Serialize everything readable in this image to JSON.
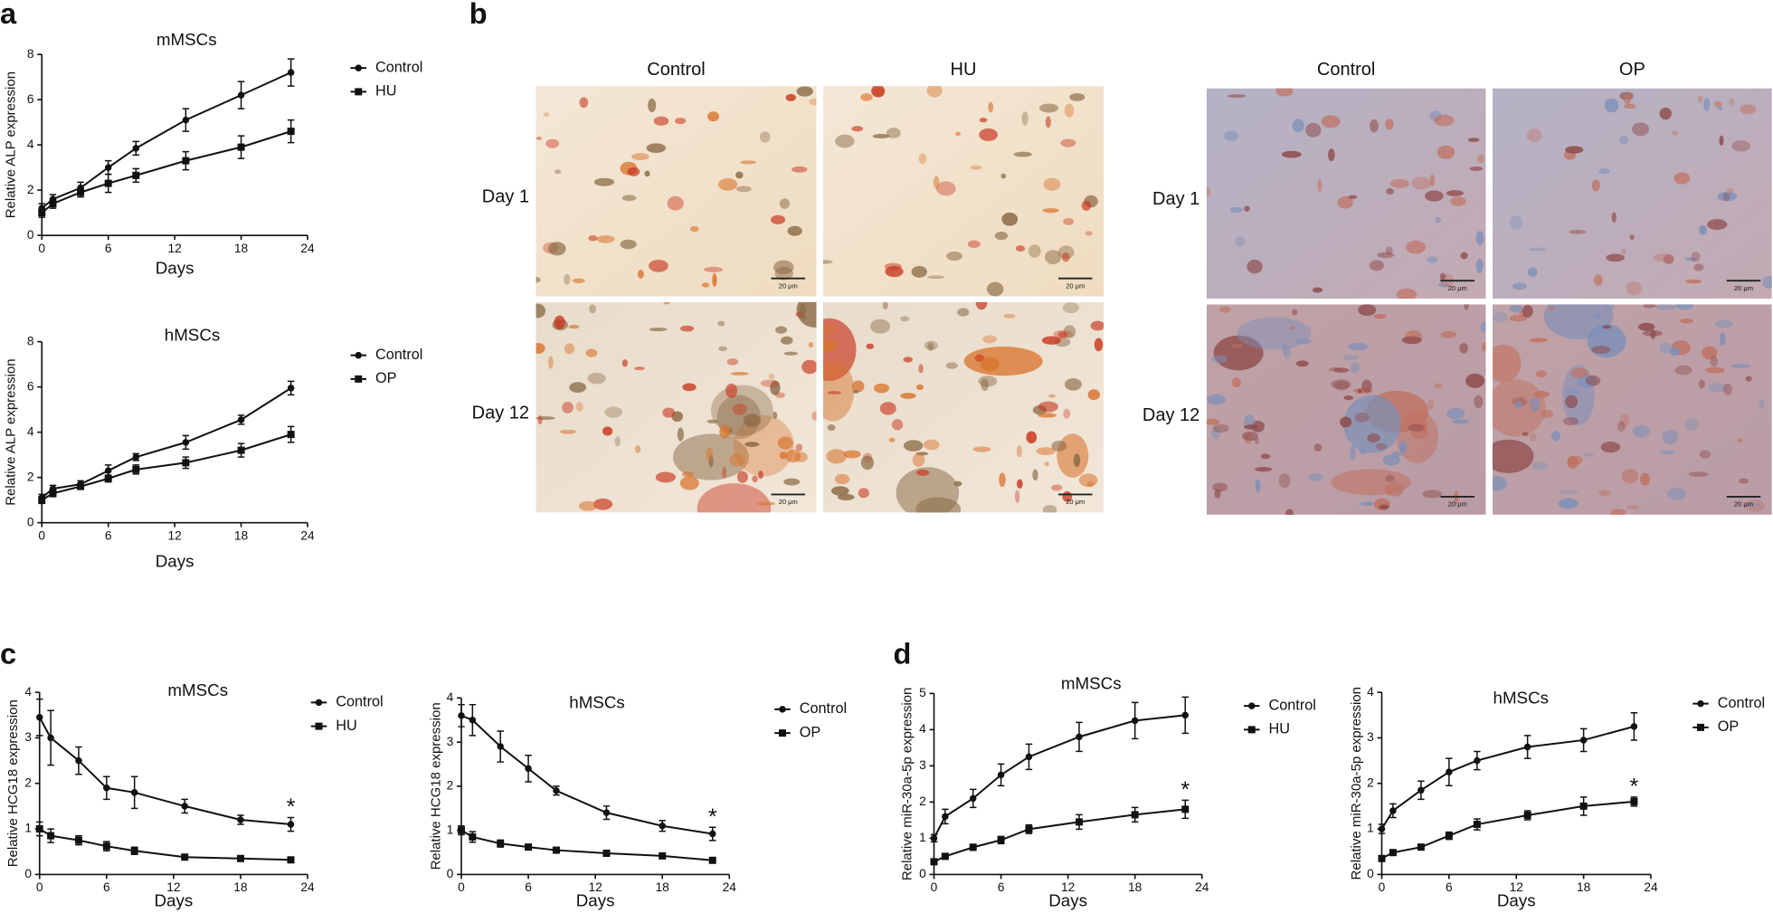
{
  "panels": [
    "a",
    "b",
    "c",
    "d"
  ],
  "micrographs": {
    "groups": [
      {
        "columns": [
          "Control",
          "HU"
        ],
        "rows": [
          "Day 1",
          "Day 12"
        ]
      },
      {
        "columns": [
          "Control",
          "OP"
        ],
        "rows": [
          "Day 1",
          "Day 12"
        ]
      }
    ],
    "scale_bar": "20 μm"
  },
  "chart_data": [
    {
      "type": "line",
      "title": "mMSCs",
      "xlabel": "Days",
      "ylabel": "Relative ALP expression",
      "x": [
        0,
        1,
        3.5,
        6,
        8.5,
        13,
        18,
        22.5
      ],
      "series": [
        {
          "name": "Control",
          "color": "#111111",
          "marker": "circle",
          "values": [
            1.2,
            1.6,
            2.1,
            3.0,
            3.85,
            5.1,
            6.2,
            7.2
          ],
          "errors": [
            0.2,
            0.2,
            0.25,
            0.3,
            0.3,
            0.5,
            0.6,
            0.6
          ]
        },
        {
          "name": "HU",
          "color": "#111111",
          "marker": "square",
          "values": [
            1.0,
            1.4,
            1.9,
            2.3,
            2.65,
            3.3,
            3.9,
            4.6
          ],
          "errors": [
            0.2,
            0.2,
            0.2,
            0.4,
            0.3,
            0.4,
            0.5,
            0.5
          ]
        }
      ],
      "xlim": [
        0,
        24
      ],
      "xticks": [
        0,
        6,
        12,
        18,
        24
      ],
      "ylim": [
        0,
        8
      ],
      "yticks": [
        0,
        2,
        4,
        6,
        8
      ]
    },
    {
      "type": "line",
      "title": "hMSCs",
      "xlabel": "Days",
      "ylabel": "Relative ALP expression",
      "x": [
        0,
        1,
        3.5,
        6,
        8.5,
        13,
        18,
        22.5
      ],
      "series": [
        {
          "name": "Control",
          "color": "#111111",
          "marker": "circle",
          "values": [
            1.1,
            1.5,
            1.7,
            2.3,
            2.9,
            3.55,
            4.55,
            5.95
          ],
          "errors": [
            0.15,
            0.15,
            0.15,
            0.25,
            0.15,
            0.3,
            0.2,
            0.3
          ]
        },
        {
          "name": "OP",
          "color": "#111111",
          "marker": "square",
          "values": [
            1.0,
            1.3,
            1.6,
            1.95,
            2.35,
            2.65,
            3.2,
            3.9
          ],
          "errors": [
            0.15,
            0.15,
            0.1,
            0.15,
            0.2,
            0.25,
            0.3,
            0.35
          ]
        }
      ],
      "xlim": [
        0,
        24
      ],
      "xticks": [
        0,
        6,
        12,
        18,
        24
      ],
      "ylim": [
        0,
        8
      ],
      "yticks": [
        0,
        2,
        4,
        6,
        8
      ]
    },
    {
      "type": "line",
      "title": "mMSCs",
      "xlabel": "Days",
      "ylabel": "Relative HCG18 expression",
      "annotation": "*",
      "x": [
        0,
        1,
        3.5,
        6,
        8.5,
        13,
        18,
        22.5
      ],
      "series": [
        {
          "name": "Control",
          "color": "#111111",
          "marker": "circle",
          "values": [
            3.45,
            3.0,
            2.5,
            1.9,
            1.8,
            1.5,
            1.2,
            1.1
          ],
          "errors": [
            0.4,
            0.6,
            0.3,
            0.25,
            0.35,
            0.15,
            0.1,
            0.15
          ]
        },
        {
          "name": "HU",
          "color": "#111111",
          "marker": "square",
          "values": [
            1.0,
            0.85,
            0.75,
            0.62,
            0.52,
            0.38,
            0.35,
            0.32
          ],
          "errors": [
            0.15,
            0.15,
            0.1,
            0.1,
            0.08,
            0.05,
            0.05,
            0.03
          ]
        }
      ],
      "xlim": [
        0,
        24
      ],
      "xticks": [
        0,
        6,
        12,
        18,
        24
      ],
      "ylim": [
        0,
        4
      ],
      "yticks": [
        0,
        1,
        2,
        3,
        4
      ]
    },
    {
      "type": "line",
      "title": "hMSCs",
      "xlabel": "Days",
      "ylabel": "Relative HCG18 expression",
      "annotation": "*",
      "x": [
        0,
        1,
        3.5,
        6,
        8.5,
        13,
        18,
        22.5
      ],
      "series": [
        {
          "name": "Control",
          "color": "#111111",
          "marker": "circle",
          "values": [
            3.6,
            3.5,
            2.9,
            2.4,
            1.9,
            1.4,
            1.1,
            0.92
          ],
          "errors": [
            0.25,
            0.35,
            0.35,
            0.3,
            0.1,
            0.15,
            0.12,
            0.15
          ]
        },
        {
          "name": "OP",
          "color": "#111111",
          "marker": "square",
          "values": [
            1.0,
            0.85,
            0.7,
            0.62,
            0.55,
            0.48,
            0.42,
            0.32
          ],
          "errors": [
            0.1,
            0.12,
            0.08,
            0.06,
            0.05,
            0.05,
            0.04,
            0.03
          ]
        }
      ],
      "xlim": [
        0,
        24
      ],
      "xticks": [
        0,
        6,
        12,
        18,
        24
      ],
      "ylim": [
        0,
        4
      ],
      "yticks": [
        0,
        1,
        2,
        3,
        4
      ]
    },
    {
      "type": "line",
      "title": "mMSCs",
      "xlabel": "Days",
      "ylabel": "Relative miR-30a-5p expression",
      "annotation": "*",
      "x": [
        0,
        1,
        3.5,
        6,
        8.5,
        13,
        18,
        22.5
      ],
      "series": [
        {
          "name": "Control",
          "color": "#111111",
          "marker": "circle",
          "values": [
            1.0,
            1.6,
            2.1,
            2.75,
            3.25,
            3.8,
            4.25,
            4.4
          ],
          "errors": [
            0.1,
            0.2,
            0.25,
            0.3,
            0.35,
            0.4,
            0.5,
            0.5
          ]
        },
        {
          "name": "HU",
          "color": "#111111",
          "marker": "square",
          "values": [
            0.35,
            0.5,
            0.75,
            0.95,
            1.25,
            1.45,
            1.65,
            1.8
          ],
          "errors": [
            0.05,
            0.05,
            0.08,
            0.1,
            0.12,
            0.2,
            0.2,
            0.25
          ]
        }
      ],
      "xlim": [
        0,
        24
      ],
      "xticks": [
        0,
        6,
        12,
        18,
        24
      ],
      "ylim": [
        0,
        5
      ],
      "yticks": [
        0,
        1,
        2,
        3,
        4,
        5
      ]
    },
    {
      "type": "line",
      "title": "hMSCs",
      "xlabel": "Days",
      "ylabel": "Relative miR-30a-5p expression",
      "annotation": "*",
      "x": [
        0,
        1,
        3.5,
        6,
        8.5,
        13,
        18,
        22.5
      ],
      "series": [
        {
          "name": "Control",
          "color": "#111111",
          "marker": "circle",
          "values": [
            1.0,
            1.4,
            1.85,
            2.25,
            2.5,
            2.8,
            2.95,
            3.25
          ],
          "errors": [
            0.1,
            0.15,
            0.2,
            0.3,
            0.2,
            0.25,
            0.25,
            0.3
          ]
        },
        {
          "name": "OP",
          "color": "#111111",
          "marker": "square",
          "values": [
            0.35,
            0.48,
            0.6,
            0.85,
            1.1,
            1.3,
            1.5,
            1.6
          ],
          "errors": [
            0.05,
            0.05,
            0.05,
            0.08,
            0.12,
            0.1,
            0.2,
            0.1
          ]
        }
      ],
      "xlim": [
        0,
        24
      ],
      "xticks": [
        0,
        6,
        12,
        18,
        24
      ],
      "ylim": [
        0,
        4
      ],
      "yticks": [
        0,
        1,
        2,
        3,
        4
      ]
    }
  ]
}
